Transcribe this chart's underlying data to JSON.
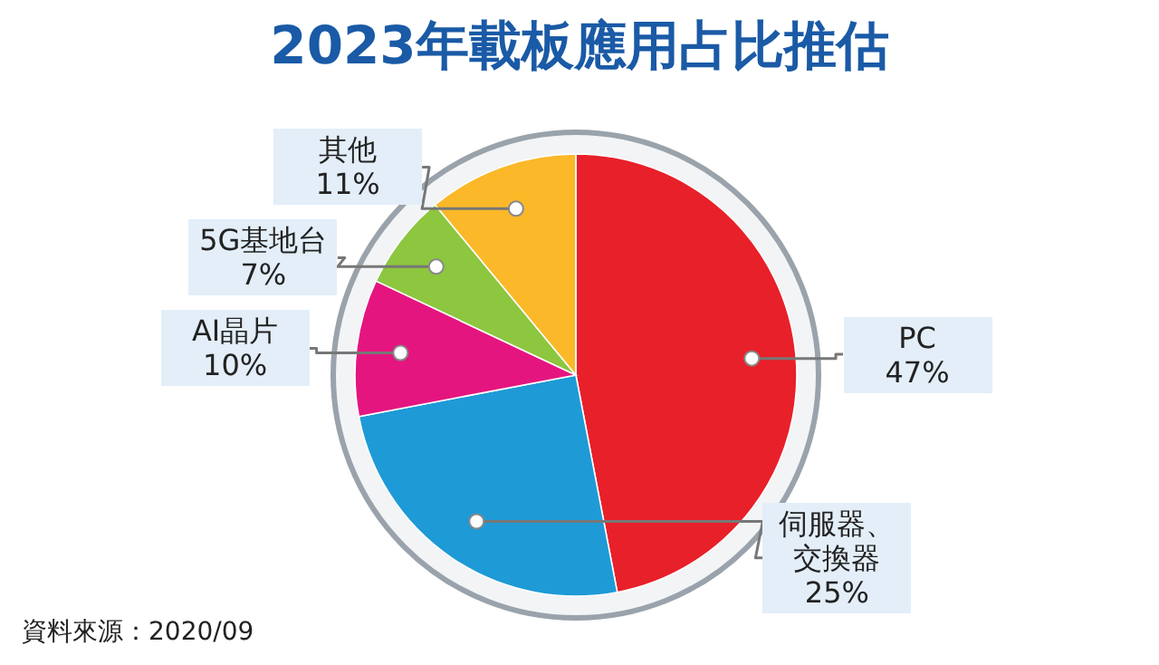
{
  "chart_data": {
    "type": "pie",
    "title": "2023年載板應用占比推估",
    "categories": [
      "PC",
      "伺服器、交換器",
      "AI晶片",
      "5G基地台",
      "其他"
    ],
    "values": [
      47,
      25,
      10,
      7,
      11
    ],
    "colors": [
      "#e8202a",
      "#1e9ad6",
      "#e5157f",
      "#8dc63f",
      "#fbb829"
    ],
    "value_labels": [
      "47%",
      "25%",
      "10%",
      "7%",
      "11%"
    ],
    "annotations": [
      "資料來源：2020/09"
    ]
  }
}
